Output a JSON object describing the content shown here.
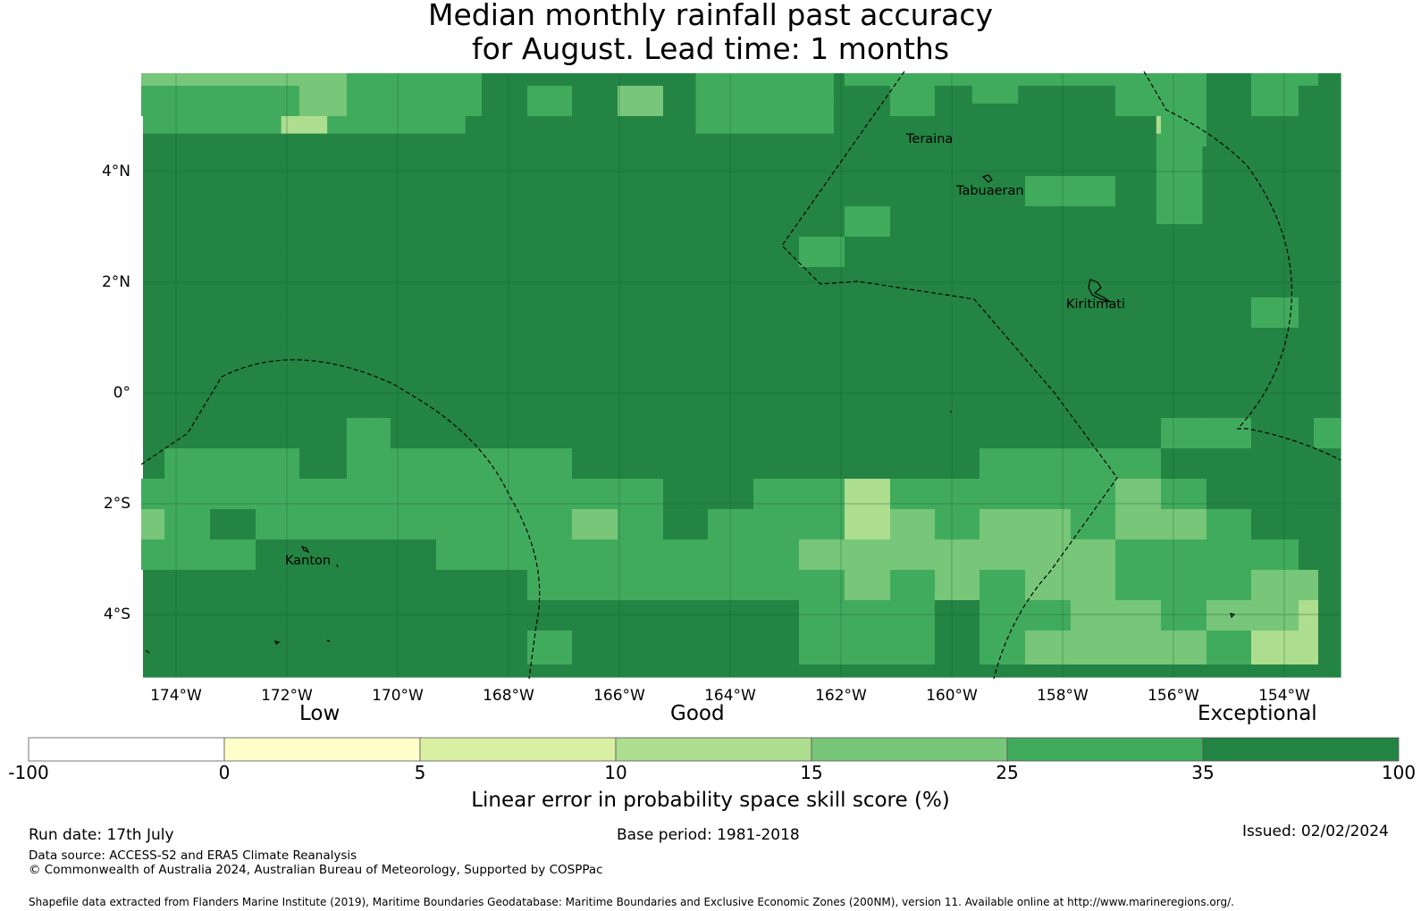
{
  "title": {
    "line1": "Median monthly rainfall past accuracy",
    "line2": "for August. Lead time: 1 months"
  },
  "map": {
    "lat_ticks": [
      "4°N",
      "2°N",
      "0°",
      "2°S",
      "4°S"
    ],
    "lon_ticks": [
      "174°W",
      "172°W",
      "170°W",
      "168°W",
      "166°W",
      "164°W",
      "162°W",
      "160°W",
      "158°W",
      "156°W",
      "154°W"
    ],
    "places": [
      "Teraina",
      "Tabuaeran",
      "Kiritimati",
      "Kanton"
    ],
    "grid": [
      "33332221111122211121114111",
      "22242221111122211111114111",
      "11111111111111111111112111",
      "11111111111111111111111111",
      "11111111111111111111111111",
      "11111111111111111111111111",
      "11111111111111111111111111",
      "11111111111111111111111111",
      "11111111111111111111111111",
      "11111111111111112111111111",
      "11111111111111111111111111",
      "11111111111111111111111111",
      "11111111111111111111111111",
      "11111111111111111111111111",
      "11111111111111111111111111",
      "11111111111111111111111111",
      "11111111111111111111111111",
      "11111111111111111111111111",
      "11111111111111111111111111",
      "11111111111111111111111111",
      "11111111111111111111111111",
      "11111111111111111111111111",
      "11111111111111111111111111",
      "11111111111111111111111111",
      "11111111111111111111111111",
      "11111111111111111111111111",
      "11111111111111111111111111",
      "11111111111111111111111111",
      "11111111111111111111111111",
      "11111111111111111111111111",
      "11111111111111111111111111",
      "11111111111111111111111111",
      "11111111111111111111111111",
      "11111111111111111111111111",
      "11111111111111111111111111",
      "11111111111111111111111111",
      "11111111111111111111111111",
      "11111111111111111111111111",
      "11111111111111111111111111",
      "11111111111111111111111111",
      "11111111111111111111111111",
      "11111111111111111111111111",
      "11111112111111111111111111",
      "12222122222221111111222221",
      "12222212222221111111122221",
      "21122222222222222222222222",
      "32122222232222222322222222",
      "22222222222222222222232222",
      "22222222222222222222222222",
      "22222222222222222222222221",
      "11111111111111111111222222",
      "11111111111111111122122222",
      "11111111111111111111111222",
      "11111111111111111121222225",
      "11111111111111111112212222"
    ],
    "grid_rows": [
      "33332221111122211121114111",
      "22242221111122211111114111",
      "11111111111111111111112111",
      "11111111111111111111112111",
      "11111111111111111111112111",
      "11111111111111111111111111",
      "11111111111111111111111111",
      "11111111111111111111111111",
      "11111111111111111111111111",
      "11111111111111111111111111",
      "11111111111111111111111111",
      "11111111111111111111111111",
      "11111111111111111111111111",
      "11111111111111111111111111",
      "11111111111111111111111111",
      "11111111111111111111111111",
      "11111111111111111111111111",
      "11111111111111111111111111",
      "11111111111111111111111111",
      "11111111111111111111111111"
    ]
  },
  "legend": {
    "categories": [
      "Low",
      "Good",
      "Exceptional"
    ],
    "ticks": [
      "-100",
      "0",
      "5",
      "10",
      "15",
      "25",
      "35",
      "100"
    ],
    "colors": [
      "#ffffff",
      "#ffffcc",
      "#d9f0a3",
      "#addd8e",
      "#78c679",
      "#41ab5d",
      "#238443"
    ],
    "label": "Linear error in probability space skill score (%)"
  },
  "footer": {
    "run_date": "Run date: 17th July",
    "base_period": "Base period: 1981-2018",
    "issued": "Issued: 02/02/2024",
    "data_source": "Data source: ACCESS-S2 and ERA5 Climate Reanalysis",
    "copyright": "© Commonwealth of Australia 2024, Australian Bureau of Meteorology, Supported by COSPPac",
    "shapefile": "Shapefile data extracted from Flanders Marine Institute (2019), Maritime Boundaries Geodatabase: Maritime Boundaries and Exclusive Economic Zones (200NM), version 11. Available online at http://www.marineregions.org/."
  }
}
